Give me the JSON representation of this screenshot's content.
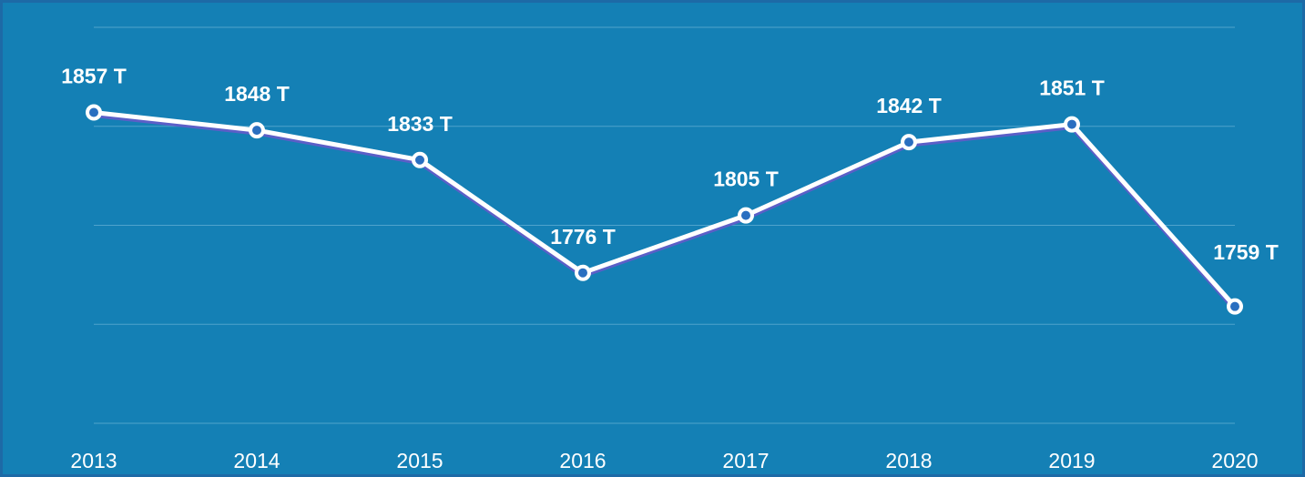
{
  "chart_data": {
    "type": "line",
    "categories": [
      "2013",
      "2014",
      "2015",
      "2016",
      "2017",
      "2018",
      "2019",
      "2020"
    ],
    "series": [
      {
        "color": "#ffffff",
        "values": [
          1857,
          1848,
          1833,
          1776,
          1805,
          1842,
          1851,
          1759
        ],
        "value_labels": [
          "1857 T",
          "1848 T",
          "1833 T",
          "1776 T",
          "1805 T",
          "1842 T",
          "1851 T",
          "1759 T"
        ]
      }
    ],
    "ylim": [
      1700,
      1900
    ],
    "yticks": [
      1700,
      1750,
      1800,
      1850,
      1900
    ],
    "grid": true
  }
}
